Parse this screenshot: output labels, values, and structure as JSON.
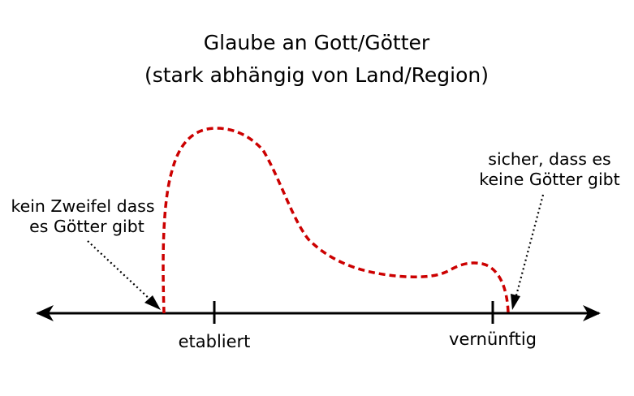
{
  "title": {
    "line1": "Glaube an Gott/Götter",
    "line2": "(stark abhängig von Land/Region)"
  },
  "axis": {
    "ticks": [
      {
        "label": "etabliert"
      },
      {
        "label": "vernünftig"
      }
    ]
  },
  "annotations": {
    "left": {
      "line1": "kein Zweifel dass",
      "line2": "es Götter gibt"
    },
    "right": {
      "line1": "sicher, dass es",
      "line2": "keine Götter gibt"
    }
  },
  "colors": {
    "curve": "#cc0000",
    "axis": "#000000",
    "text": "#000000"
  }
}
